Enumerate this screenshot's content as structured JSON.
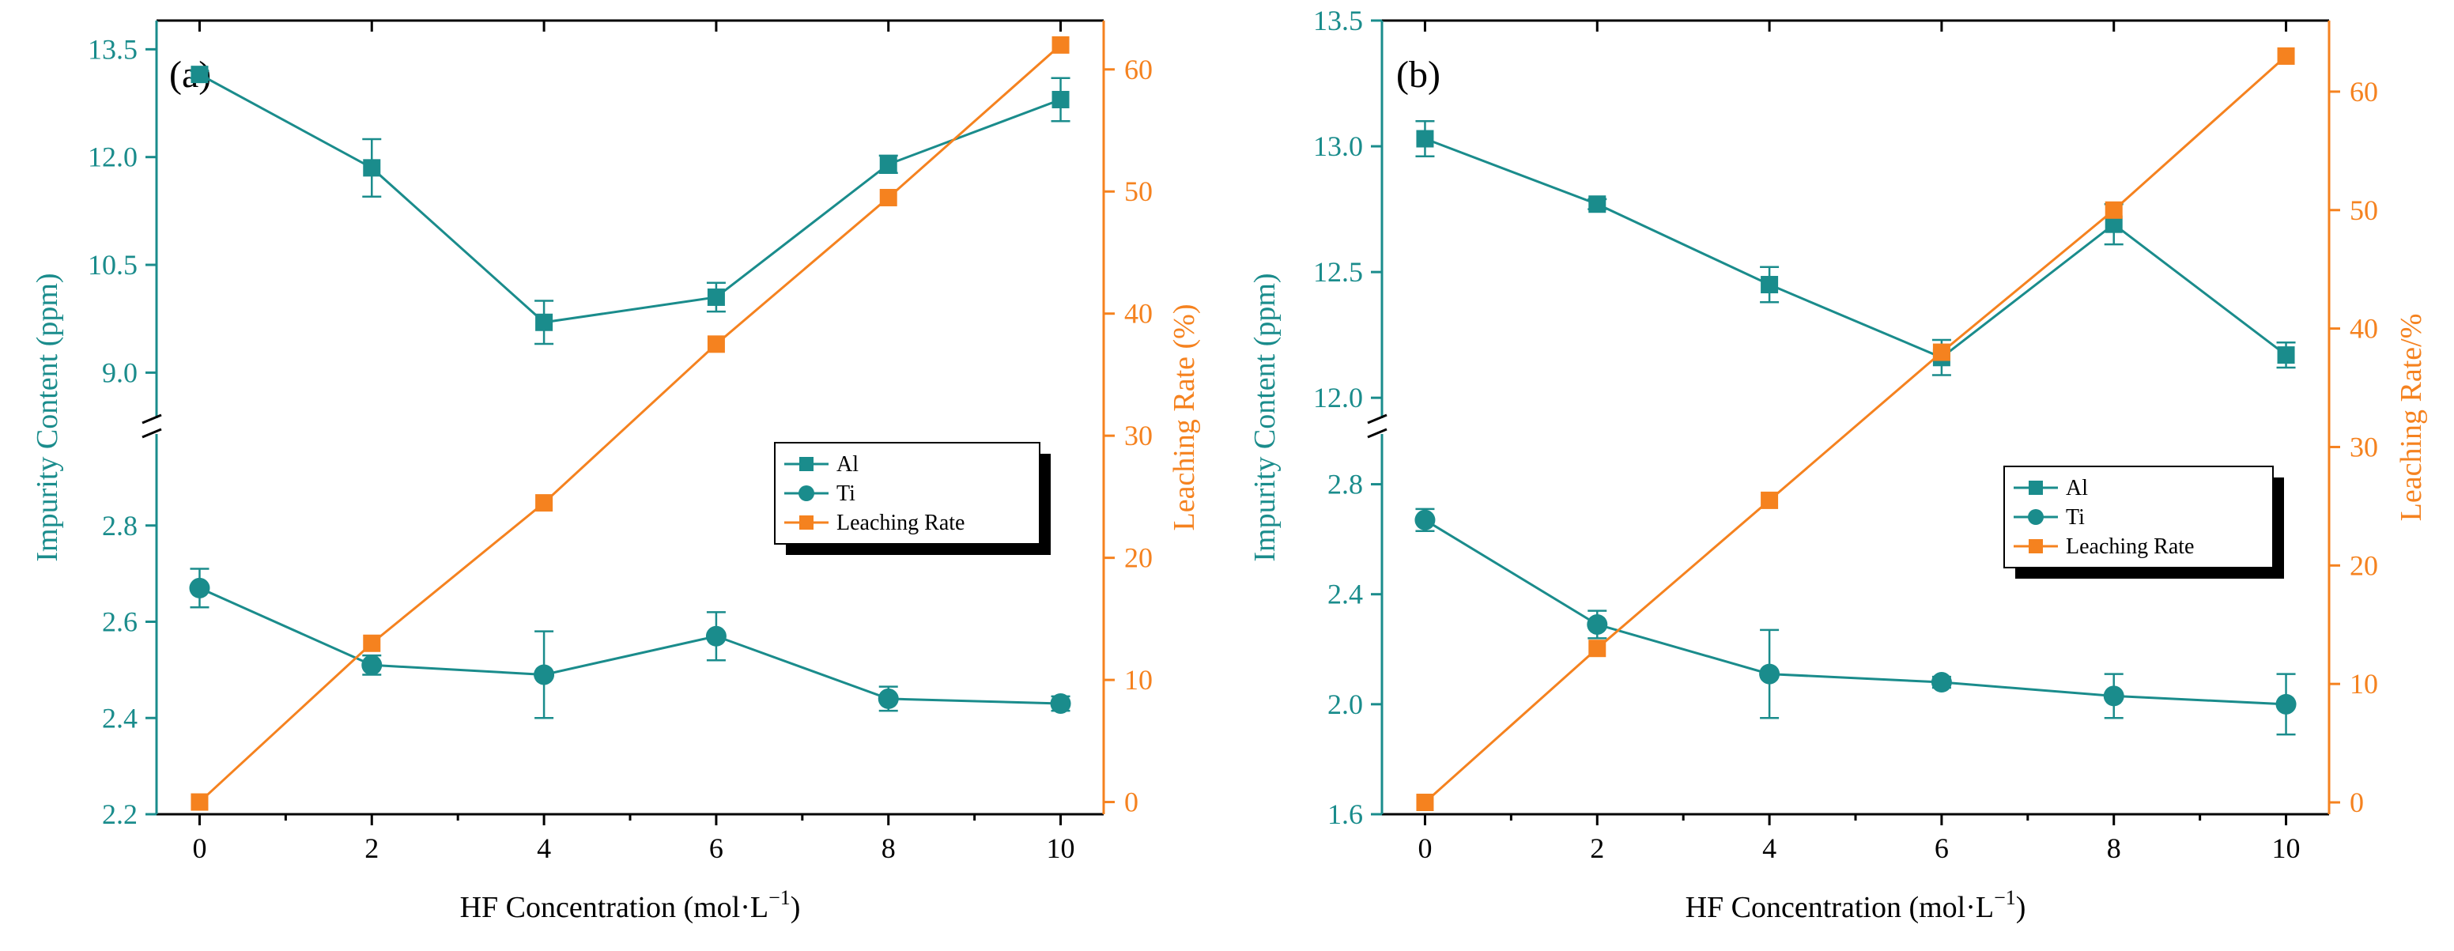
{
  "colors": {
    "impurity": "#1a8c8c",
    "leaching": "#f5821f",
    "axis": "#000000"
  },
  "legend_labels": [
    "Al",
    "Ti",
    "Leaching Rate"
  ],
  "chart_data": [
    {
      "type": "line",
      "panel_label": "(a)",
      "xlabel": "HF  Concentration (mol·L",
      "xlabel_sup": "−1",
      "xlabel_close": ")",
      "ylabel_left": "Impurity Content (ppm)",
      "ylabel_right": "Leaching Rate (%)",
      "x": [
        0,
        2,
        4,
        6,
        8,
        10
      ],
      "xlim": [
        -0.5,
        10.5
      ],
      "x_ticks": [
        0,
        2,
        4,
        6,
        8,
        10
      ],
      "upper_ylim": [
        8.3,
        13.9
      ],
      "upper_ticks": [
        "9.0",
        "10.5",
        "12.0",
        "13.5"
      ],
      "lower_ylim": [
        2.2,
        3.0
      ],
      "lower_ticks": [
        "2.2",
        "2.4",
        "2.6",
        "2.8"
      ],
      "right_ylim": [
        -1,
        64
      ],
      "right_ticks": [
        "0",
        "10",
        "20",
        "30",
        "40",
        "50",
        "60"
      ],
      "series": [
        {
          "name": "Al",
          "axis": "upper",
          "marker": "square",
          "values": [
            13.15,
            11.85,
            9.7,
            10.05,
            11.9,
            12.8
          ],
          "errors": [
            0.05,
            0.4,
            0.3,
            0.2,
            0.12,
            0.3
          ]
        },
        {
          "name": "Ti",
          "axis": "lower",
          "marker": "circle",
          "values": [
            2.67,
            2.51,
            2.49,
            2.57,
            2.44,
            2.43
          ],
          "errors": [
            0.04,
            0.02,
            0.09,
            0.05,
            0.025,
            0.015
          ]
        },
        {
          "name": "Leaching Rate",
          "axis": "right",
          "marker": "square",
          "values": [
            0,
            13,
            24.5,
            37.5,
            49.5,
            62
          ],
          "errors": []
        }
      ]
    },
    {
      "type": "line",
      "panel_label": "(b)",
      "xlabel": "HF  Concentration (mol·L",
      "xlabel_sup": "−1",
      "xlabel_close": ")",
      "ylabel_left": "Impurity Content (ppm)",
      "ylabel_right": "Leaching Rate/%",
      "x": [
        0,
        2,
        4,
        6,
        8,
        10
      ],
      "xlim": [
        -0.5,
        10.5
      ],
      "x_ticks": [
        0,
        2,
        4,
        6,
        8,
        10
      ],
      "upper_ylim": [
        11.9,
        13.5
      ],
      "upper_ticks": [
        "12.0",
        "12.5",
        "13.0",
        "13.5"
      ],
      "lower_ylim": [
        1.6,
        3.0
      ],
      "lower_ticks": [
        "1.6",
        "2.0",
        "2.4",
        "2.8"
      ],
      "right_ylim": [
        -1,
        66
      ],
      "right_ticks": [
        "0",
        "10",
        "20",
        "30",
        "40",
        "50",
        "60"
      ],
      "series": [
        {
          "name": "Al",
          "axis": "upper",
          "marker": "square",
          "values": [
            13.03,
            12.77,
            12.45,
            12.16,
            12.69,
            12.17
          ],
          "errors": [
            0.07,
            0.02,
            0.07,
            0.07,
            0.08,
            0.05
          ]
        },
        {
          "name": "Ti",
          "axis": "lower",
          "marker": "circle",
          "values": [
            2.67,
            2.29,
            2.11,
            2.08,
            2.03,
            2.0
          ],
          "errors": [
            0.04,
            0.05,
            0.16,
            0.02,
            0.08,
            0.11
          ]
        },
        {
          "name": "Leaching Rate",
          "axis": "right",
          "marker": "square",
          "values": [
            0,
            13,
            25.5,
            38,
            50,
            63
          ],
          "errors": []
        }
      ]
    }
  ]
}
